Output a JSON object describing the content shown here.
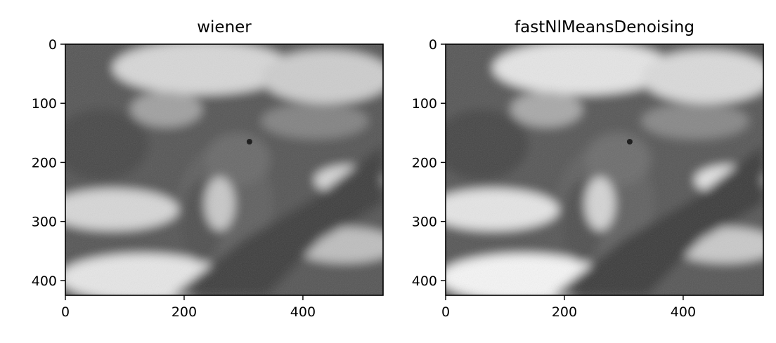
{
  "chart_data": [
    {
      "type": "heatmap",
      "render": "grayscale image",
      "title": "wiener",
      "xlim": [
        0,
        535
      ],
      "ylim": [
        425,
        0
      ],
      "xticks": [
        0,
        200,
        400
      ],
      "yticks": [
        0,
        100,
        200,
        300,
        400
      ],
      "grid": false,
      "colormap": "gray"
    },
    {
      "type": "heatmap",
      "render": "grayscale image",
      "title": "fastNlMeansDenoising",
      "xlim": [
        0,
        535
      ],
      "ylim": [
        425,
        0
      ],
      "xticks": [
        0,
        200,
        400
      ],
      "yticks": [
        0,
        100,
        200,
        300,
        400
      ],
      "grid": false,
      "colormap": "gray"
    }
  ]
}
